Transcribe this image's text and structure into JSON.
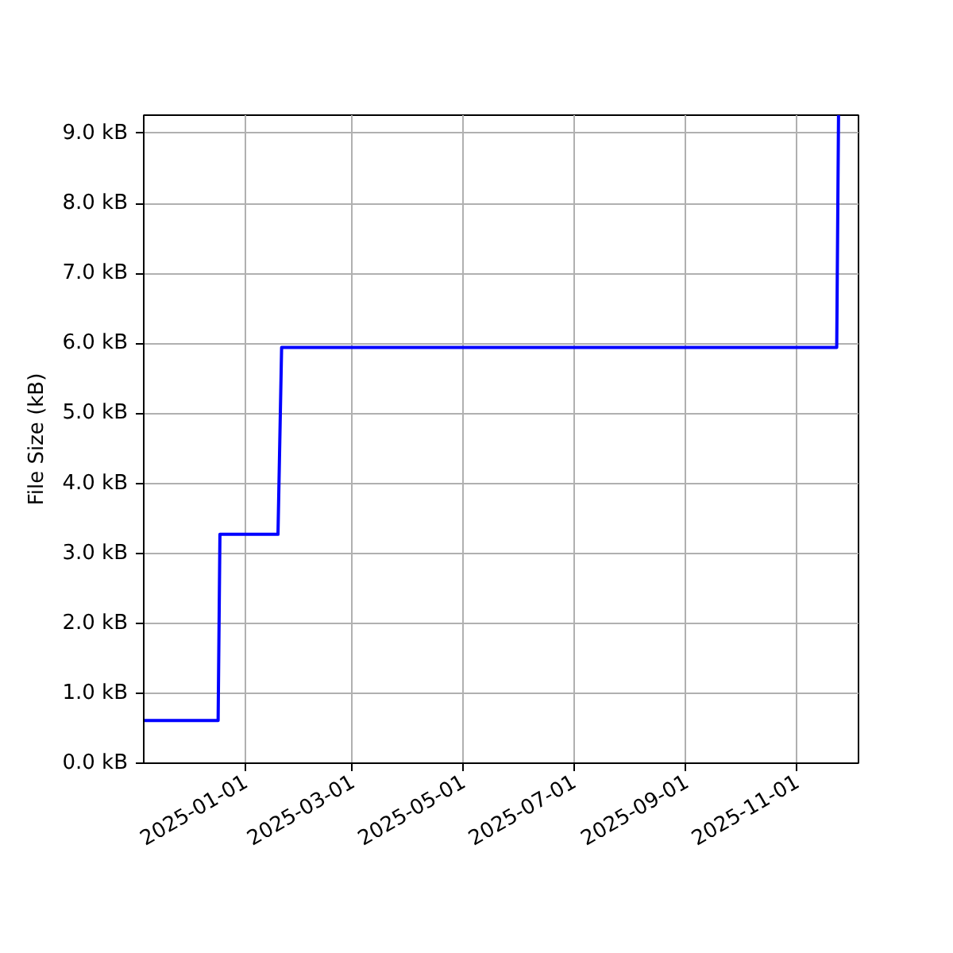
{
  "chart_data": {
    "type": "line",
    "ylabel": "File Size (kB)",
    "x": [
      "2024-11-06",
      "2024-12-17",
      "2024-12-18",
      "2025-01-19",
      "2025-01-21",
      "2025-11-23",
      "2025-11-24"
    ],
    "values": [
      0.61,
      0.61,
      3.27,
      3.27,
      5.94,
      5.94,
      9.26
    ],
    "color": "#0000ff",
    "line_style": "solid",
    "xlim": [
      "2024-11-06",
      "2025-12-05"
    ],
    "xticks": [
      "2025-01-01",
      "2025-03-01",
      "2025-05-01",
      "2025-07-01",
      "2025-09-01",
      "2025-11-01"
    ],
    "ylim": [
      0,
      9.26
    ],
    "yticks": [
      {
        "value": 0,
        "label": "0.0 kB"
      },
      {
        "value": 1,
        "label": "1.0 kB"
      },
      {
        "value": 2,
        "label": "2.0 kB"
      },
      {
        "value": 3,
        "label": "3.0 kB"
      },
      {
        "value": 4,
        "label": "4.0 kB"
      },
      {
        "value": 5,
        "label": "5.0 kB"
      },
      {
        "value": 6,
        "label": "6.0 kB"
      },
      {
        "value": 7,
        "label": "7.0 kB"
      },
      {
        "value": 8,
        "label": "8.0 kB"
      },
      {
        "value": 9,
        "label": "9.0 kB"
      }
    ],
    "grid": true
  }
}
